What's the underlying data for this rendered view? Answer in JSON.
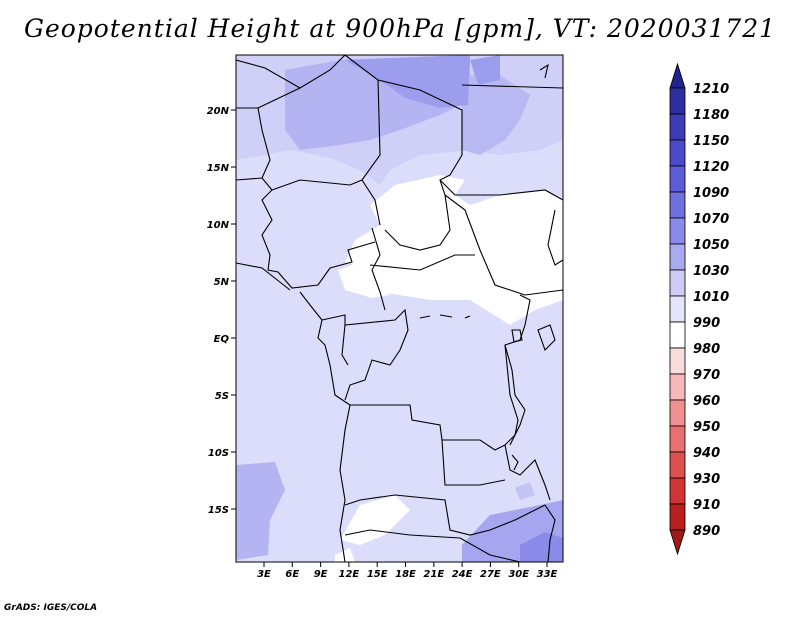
{
  "title": "Geopotential Height at 900hPa [gpm], VT: 2020031721",
  "footer": "GrADS: IGES/COLA",
  "map": {
    "lat_labels": [
      "20N",
      "15N",
      "10N",
      "5N",
      "EQ",
      "5S",
      "10S",
      "15S"
    ],
    "lon_labels": [
      "3E",
      "6E",
      "9E",
      "12E",
      "15E",
      "18E",
      "21E",
      "24E",
      "27E",
      "30E",
      "33E"
    ],
    "lon_range": [
      0,
      35
    ],
    "lat_range": [
      -20,
      25
    ]
  },
  "colorbar": {
    "labels": [
      "1210",
      "1180",
      "1150",
      "1120",
      "1090",
      "1070",
      "1050",
      "1030",
      "1010",
      "990",
      "980",
      "970",
      "960",
      "950",
      "940",
      "930",
      "910",
      "890"
    ],
    "colors": [
      "#23238e",
      "#2e2ea0",
      "#3c3cb4",
      "#4b4bc8",
      "#5d5dd6",
      "#7070e0",
      "#8a8ae8",
      "#aaaaf0",
      "#ccccf6",
      "#e4e4fa",
      "#ffffff",
      "#fbdcdc",
      "#f6b8b8",
      "#f09090",
      "#e87070",
      "#dd5050",
      "#d03434",
      "#b82020",
      "#a01818"
    ]
  }
}
